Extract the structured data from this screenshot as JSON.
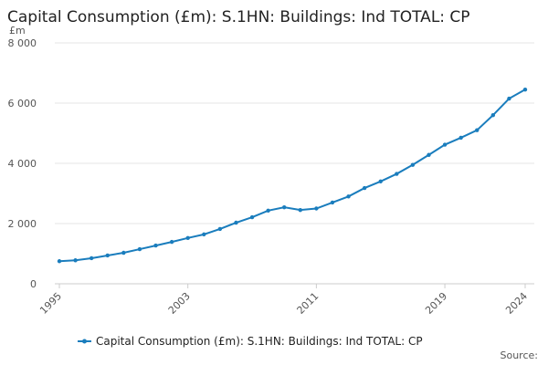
{
  "chart_data": {
    "type": "line",
    "title": "Capital Consumption (£m): S.1HN: Buildings: Ind TOTAL: CP",
    "y_unit": "£m",
    "source": "Source:",
    "x": [
      1995,
      1996,
      1997,
      1998,
      1999,
      2000,
      2001,
      2002,
      2003,
      2004,
      2005,
      2006,
      2007,
      2008,
      2009,
      2010,
      2011,
      2012,
      2013,
      2014,
      2015,
      2016,
      2017,
      2018,
      2019,
      2020,
      2021,
      2022,
      2023,
      2024
    ],
    "series": [
      {
        "name": "Capital Consumption (£m): S.1HN: Buildings: Ind TOTAL: CP",
        "color": "#1a7dbd",
        "values": [
          750,
          780,
          850,
          940,
          1030,
          1150,
          1270,
          1390,
          1520,
          1640,
          1820,
          2030,
          2210,
          2430,
          2540,
          2450,
          2500,
          2700,
          2900,
          3180,
          3400,
          3650,
          3950,
          4280,
          4620,
          4850,
          5100,
          5600,
          6150,
          6450
        ]
      }
    ],
    "xlim": [
      1995,
      2024
    ],
    "xticks": [
      1995,
      2003,
      2011,
      2019,
      2024
    ],
    "ylim": [
      0,
      8000
    ],
    "yticks": [
      0,
      {
        "value": 2000,
        "label": "2 000"
      },
      {
        "value": 4000,
        "label": "4 000"
      },
      {
        "value": 6000,
        "label": "6 000"
      },
      {
        "value": 8000,
        "label": "8 000"
      }
    ],
    "grid": true
  }
}
